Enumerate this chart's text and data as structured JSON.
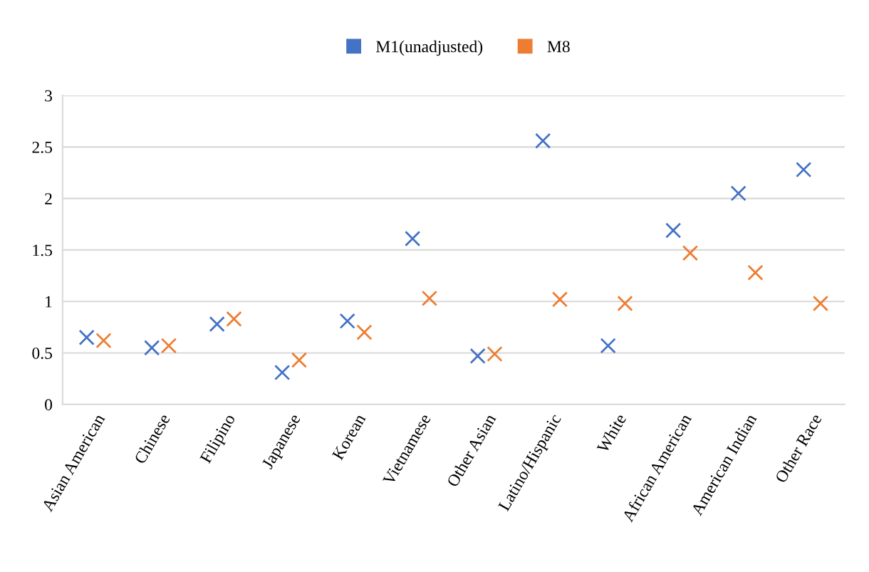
{
  "chart_data": {
    "type": "scatter",
    "categories": [
      "Asian American",
      "Chinese",
      "Filipino",
      "Japanese",
      "Korean",
      "Vietnamese",
      "Other Asian",
      "Latino/Hispanic",
      "White",
      "African American",
      "American Indian",
      "Other Race"
    ],
    "series": [
      {
        "name": "M1(unadjusted)",
        "color": "#4472c4",
        "values": [
          0.65,
          0.55,
          0.78,
          0.31,
          0.81,
          1.61,
          0.47,
          2.56,
          0.57,
          1.69,
          2.05,
          2.28
        ]
      },
      {
        "name": "M8",
        "color": "#ed7d31",
        "values": [
          0.62,
          0.57,
          0.83,
          0.43,
          0.7,
          1.03,
          0.49,
          1.02,
          0.98,
          1.47,
          1.28,
          0.98
        ]
      }
    ],
    "ylim": [
      0,
      3
    ],
    "yticks": [
      0,
      0.5,
      1,
      1.5,
      2,
      2.5,
      3
    ],
    "grid": "y",
    "legend": "top",
    "marker": "cross"
  }
}
